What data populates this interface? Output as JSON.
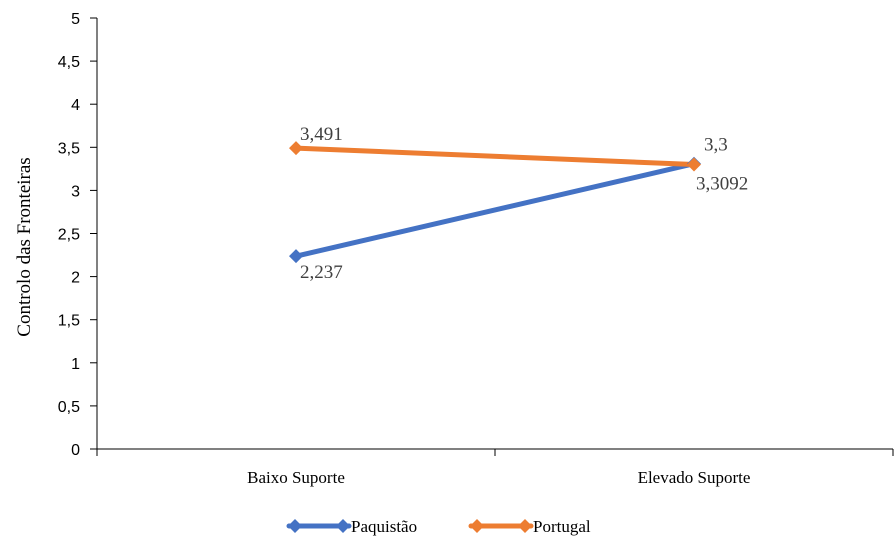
{
  "chart_data": {
    "type": "line",
    "title": "",
    "xlabel": "",
    "ylabel": "Controlo das Fronteiras",
    "categories": [
      "Baixo Suporte",
      "Elevado Suporte"
    ],
    "ylim": [
      0,
      5
    ],
    "yticks": [
      0,
      0.5,
      1,
      1.5,
      2,
      2.5,
      3,
      3.5,
      4,
      4.5,
      5
    ],
    "ytick_labels": [
      "0",
      "0,5",
      "1",
      "1,5",
      "2",
      "2,5",
      "3",
      "3,5",
      "4",
      "4,5",
      "5"
    ],
    "grid": false,
    "legend_position": "bottom",
    "series": [
      {
        "name": "Paquistão",
        "values": [
          2.237,
          3.3092
        ],
        "labels": [
          "2,237",
          "3,3092"
        ],
        "color": "#4472C4",
        "marker": "diamond"
      },
      {
        "name": "Portugal",
        "values": [
          3.491,
          3.3
        ],
        "labels": [
          "3,491",
          "3,3"
        ],
        "color": "#ED7D31",
        "marker": "diamond"
      }
    ]
  }
}
